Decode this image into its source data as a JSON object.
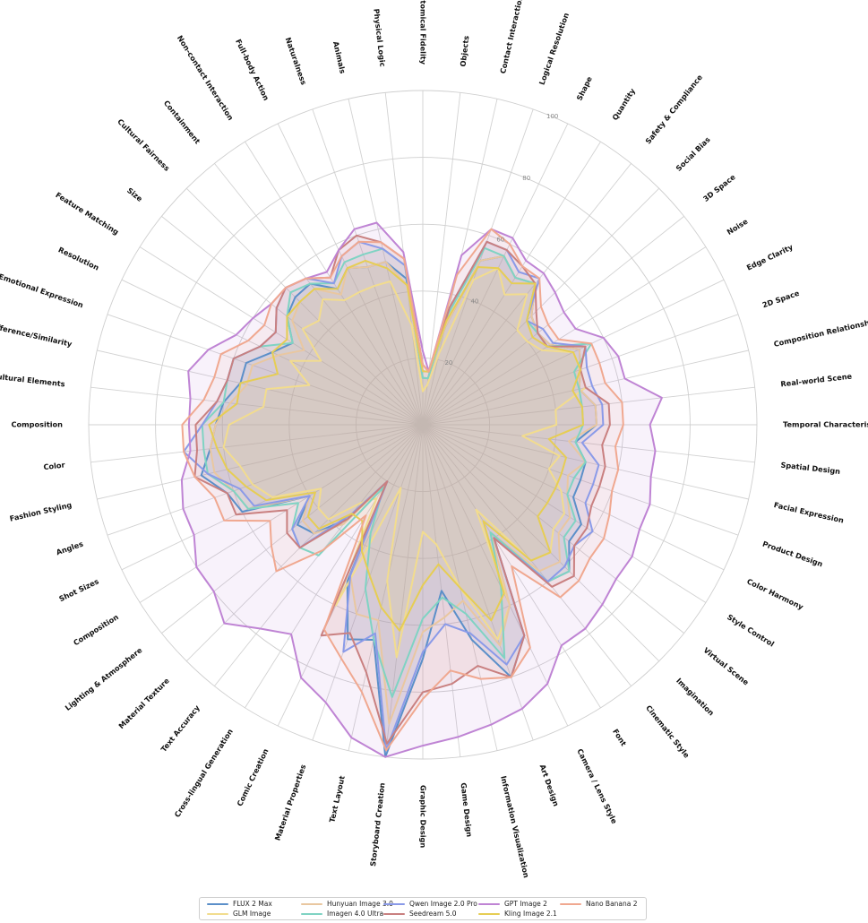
{
  "chart_data": {
    "type": "radar",
    "title": "",
    "rmax": 100,
    "radial_ticks": [
      20,
      40,
      60,
      80,
      100
    ],
    "categories": [
      "Anatomical Fidelity",
      "Objects",
      "Contact Interaction",
      "Logical Resolution",
      "Shape",
      "Quantity",
      "Safety & Compliance",
      "Social Bias",
      "3D Space",
      "Noise",
      "Edge Clarity",
      "2D Space",
      "Composition Relationship",
      "Real-world Scene",
      "Temporal Characteristics",
      "Spatial Design",
      "Facial Expression",
      "Product Design",
      "Color Harmony",
      "Style Control",
      "Virtual Scene",
      "Imagination",
      "Cinematic Style",
      "Font",
      "Camera / Lens Style",
      "Art Design",
      "Information Visualization",
      "Game Design",
      "Graphic Design",
      "Storyboard Creation",
      "Text Layout",
      "Material Properties",
      "Comic Creation",
      "Cross-lingual Generation",
      "Text Accuracy",
      "Material Texture",
      "Lighting & Atmosphere",
      "Composition",
      "Shot Sizes",
      "Angles",
      "Fashion Styling",
      "Color",
      "Composition",
      "Cultural Elements",
      "Difference/Similarity",
      "Emotional Expression",
      "Resolution",
      "Feature Matching",
      "Size",
      "Cultural Fairness",
      "Containment",
      "Non-contact Interaction",
      "Full-body Action",
      "Naturalness",
      "Animals",
      "Physical Logic"
    ],
    "series": [
      {
        "name": "FLUX 2 Max",
        "color": "#5b8fc9",
        "values": [
          14,
          14,
          30,
          52,
          56,
          52,
          54,
          46,
          44,
          45,
          52,
          50,
          48,
          52,
          52,
          46,
          50,
          50,
          50,
          56,
          56,
          62,
          60,
          40,
          70,
          80,
          66,
          50,
          70,
          100,
          66,
          68,
          52,
          20,
          36,
          46,
          48,
          40,
          60,
          62,
          68,
          64,
          62,
          60,
          56,
          56,
          50,
          46,
          52,
          54,
          54,
          48,
          52,
          50,
          50,
          44
        ]
      },
      {
        "name": "GLM Image",
        "color": "#f2dc8e",
        "values": [
          10,
          12,
          22,
          46,
          52,
          46,
          50,
          40,
          40,
          42,
          50,
          50,
          50,
          40,
          40,
          30,
          42,
          40,
          46,
          50,
          50,
          54,
          52,
          30,
          60,
          68,
          50,
          36,
          32,
          70,
          48,
          20,
          60,
          26,
          30,
          40,
          40,
          36,
          50,
          54,
          56,
          60,
          58,
          48,
          48,
          36,
          44,
          36,
          46,
          44,
          48,
          44,
          44,
          44,
          44,
          30
        ]
      },
      {
        "name": "Hunyuan Image 3.0",
        "color": "#e9c7a0",
        "values": [
          14,
          14,
          30,
          52,
          56,
          52,
          54,
          46,
          44,
          45,
          52,
          50,
          48,
          52,
          52,
          44,
          50,
          46,
          48,
          52,
          52,
          58,
          56,
          38,
          60,
          70,
          54,
          58,
          62,
          90,
          60,
          60,
          50,
          20,
          38,
          46,
          46,
          40,
          58,
          60,
          64,
          64,
          62,
          58,
          54,
          54,
          48,
          42,
          50,
          52,
          52,
          46,
          52,
          50,
          50,
          42
        ]
      },
      {
        "name": "Imagen 4.0 Ultra",
        "color": "#7fd3c3",
        "values": [
          14,
          14,
          34,
          56,
          56,
          52,
          54,
          44,
          44,
          44,
          56,
          48,
          48,
          48,
          48,
          46,
          50,
          48,
          48,
          54,
          54,
          62,
          60,
          38,
          54,
          74,
          58,
          52,
          58,
          82,
          66,
          52,
          36,
          22,
          50,
          52,
          50,
          44,
          58,
          60,
          66,
          66,
          66,
          60,
          60,
          60,
          54,
          46,
          52,
          56,
          54,
          50,
          54,
          54,
          54,
          48
        ]
      },
      {
        "name": "Qwen Image 2.0 Pro",
        "color": "#8a9ae8",
        "values": [
          16,
          16,
          36,
          58,
          58,
          54,
          56,
          44,
          46,
          46,
          54,
          52,
          52,
          54,
          54,
          48,
          54,
          54,
          54,
          60,
          58,
          60,
          60,
          40,
          70,
          76,
          64,
          60,
          68,
          98,
          64,
          72,
          50,
          20,
          34,
          52,
          50,
          40,
          56,
          58,
          66,
          72,
          66,
          62,
          60,
          60,
          54,
          52,
          56,
          58,
          56,
          50,
          56,
          58,
          54,
          48
        ]
      },
      {
        "name": "Seedream 5.0",
        "color": "#c98080",
        "values": [
          18,
          16,
          36,
          58,
          58,
          56,
          54,
          48,
          44,
          44,
          54,
          50,
          50,
          56,
          56,
          54,
          56,
          56,
          56,
          58,
          58,
          64,
          62,
          40,
          70,
          80,
          74,
          78,
          80,
          96,
          76,
          66,
          70,
          20,
          36,
          52,
          52,
          48,
          62,
          62,
          70,
          68,
          68,
          62,
          60,
          60,
          54,
          52,
          56,
          58,
          56,
          52,
          58,
          60,
          56,
          50
        ]
      },
      {
        "name": "GPT Image 2",
        "color": "#bf84d4",
        "values": [
          22,
          16,
          52,
          62,
          62,
          58,
          58,
          56,
          54,
          54,
          60,
          62,
          62,
          72,
          68,
          70,
          70,
          72,
          72,
          74,
          74,
          76,
          78,
          78,
          86,
          90,
          92,
          94,
          96,
          100,
          96,
          88,
          84,
          74,
          78,
          84,
          80,
          80,
          76,
          76,
          74,
          70,
          70,
          70,
          72,
          68,
          62,
          60,
          58,
          58,
          56,
          54,
          58,
          62,
          62,
          52
        ]
      },
      {
        "name": "Kling Image 2.1",
        "color": "#e6cd54",
        "values": [
          16,
          16,
          32,
          50,
          52,
          50,
          54,
          44,
          42,
          44,
          50,
          50,
          46,
          48,
          48,
          38,
          44,
          44,
          44,
          44,
          44,
          54,
          52,
          34,
          56,
          62,
          50,
          42,
          48,
          62,
          56,
          48,
          42,
          34,
          34,
          44,
          44,
          38,
          52,
          56,
          60,
          62,
          64,
          56,
          56,
          46,
          50,
          48,
          52,
          52,
          52,
          48,
          52,
          52,
          48,
          42
        ]
      },
      {
        "name": "Nano Banana 2",
        "color": "#f0a890",
        "values": [
          18,
          16,
          46,
          62,
          60,
          56,
          56,
          50,
          48,
          48,
          56,
          56,
          56,
          60,
          60,
          58,
          60,
          60,
          62,
          64,
          64,
          66,
          66,
          50,
          74,
          80,
          78,
          74,
          82,
          98,
          82,
          74,
          68,
          32,
          48,
          62,
          58,
          54,
          66,
          66,
          70,
          72,
          72,
          66,
          64,
          64,
          58,
          56,
          58,
          58,
          56,
          52,
          56,
          58,
          56,
          50
        ]
      }
    ]
  }
}
